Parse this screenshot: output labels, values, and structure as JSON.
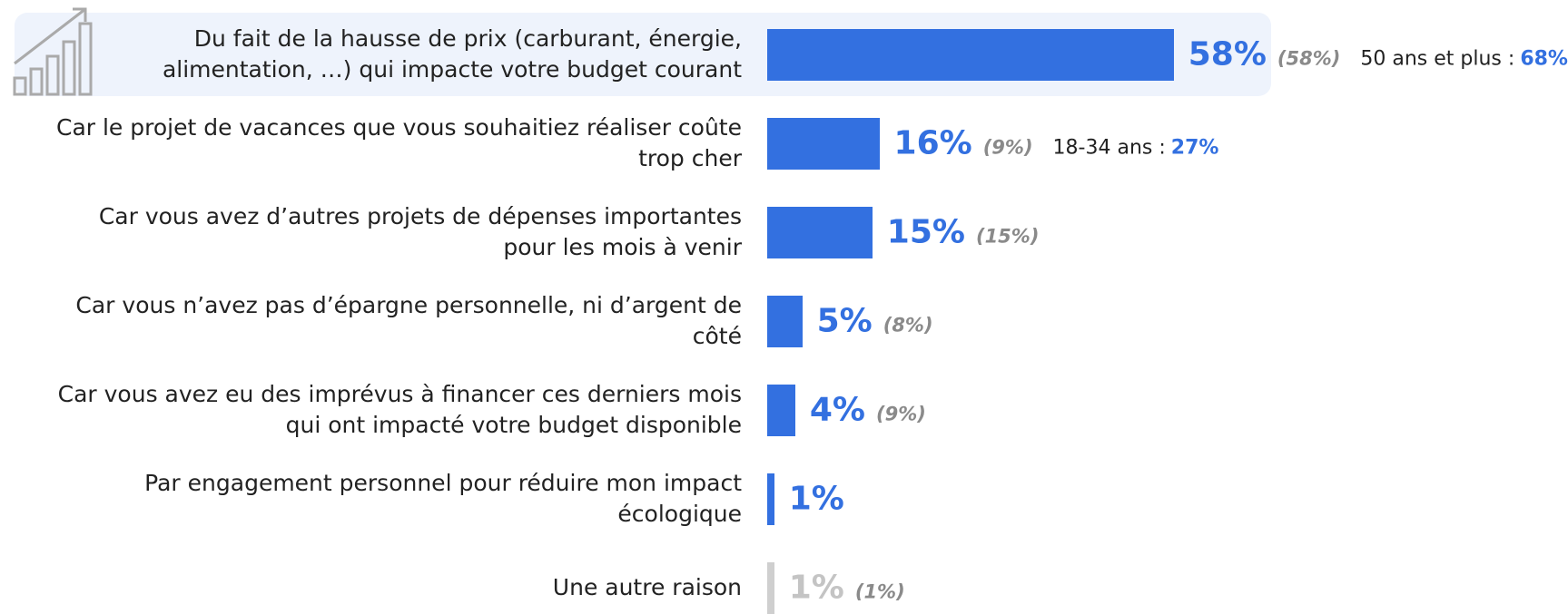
{
  "chart_data": {
    "type": "bar",
    "orientation": "horizontal",
    "categories": [
      "Du fait de la hausse de prix (carburant, énergie, alimentation, …) qui impacte votre budget courant",
      "Car le projet de vacances que vous souhaitiez réaliser coûte trop cher",
      "Car vous avez d’autres projets de dépenses importantes pour les mois à venir",
      "Car vous n’avez pas d’épargne personnelle, ni d’argent de côté",
      "Car vous avez eu des imprévus à financer ces derniers mois qui ont impacté votre budget disponible",
      "Par engagement personnel pour réduire mon impact écologique",
      "Une autre raison"
    ],
    "values": [
      58,
      16,
      15,
      5,
      4,
      1,
      1
    ],
    "value_labels": [
      "58%",
      "16%",
      "15%",
      "5%",
      "4%",
      "1%",
      "1%"
    ],
    "colors": [
      "#3370e0",
      "#3370e0",
      "#3370e0",
      "#3370e0",
      "#3370e0",
      "#3370e0",
      "#cfcfcf"
    ],
    "previous_values": [
      58,
      9,
      15,
      8,
      9,
      null,
      1
    ],
    "previous_labels": [
      "(58%)",
      "(9%)",
      "(15%)",
      "(8%)",
      "(9%)",
      null,
      "(1%)"
    ],
    "annotations": [
      {
        "text": "50 ans et plus :",
        "value": 68,
        "label": "68%"
      },
      {
        "text": "18-34 ans :",
        "value": 27,
        "label": "27%"
      }
    ]
  }
}
